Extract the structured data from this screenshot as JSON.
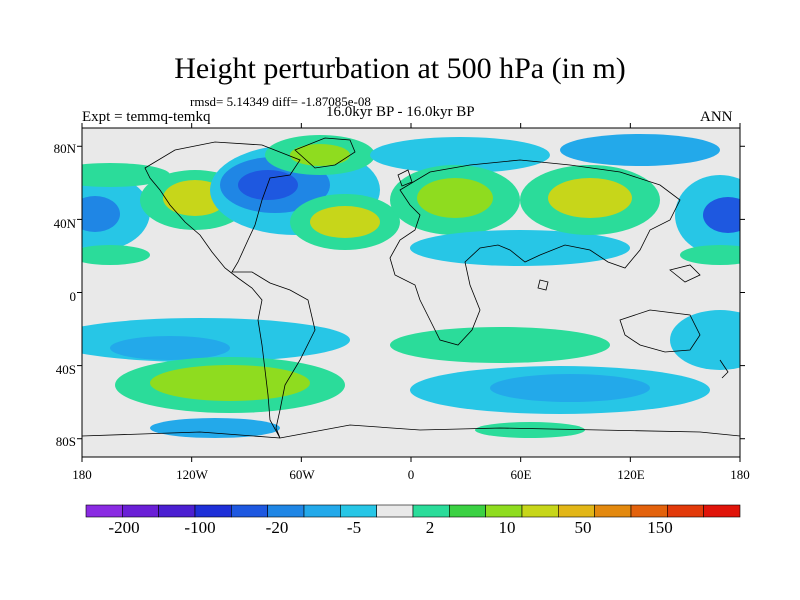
{
  "title": "Height perturbation at 500 hPa (in m)",
  "stats": "rmsd= 5.14349 diff= -1.87085e-08",
  "experiment": "Expt = temmq-temkq",
  "period": "16.0kyr BP - 16.0kyr BP",
  "season": "ANN",
  "map": {
    "lat_labels": [
      "80N",
      "40N",
      "0",
      "40S",
      "80S"
    ],
    "lon_labels": [
      "180",
      "120W",
      "60W",
      "0",
      "60E",
      "120E",
      "180"
    ]
  },
  "colorbar": {
    "labels": [
      "-200",
      "-100",
      "-20",
      "-5",
      "2",
      "10",
      "50",
      "150"
    ],
    "colors": [
      "#8a2be2",
      "#6a1fd6",
      "#4b1fd1",
      "#1e2fd8",
      "#1e58e0",
      "#1f86e5",
      "#23a9ea",
      "#27c6e6",
      "#e9e9e9",
      "#2bdc9a",
      "#3bd143",
      "#8fdc1f",
      "#c7d61a",
      "#e2b617",
      "#e3890f",
      "#e3620c",
      "#e23a0a",
      "#e0140a"
    ]
  }
}
